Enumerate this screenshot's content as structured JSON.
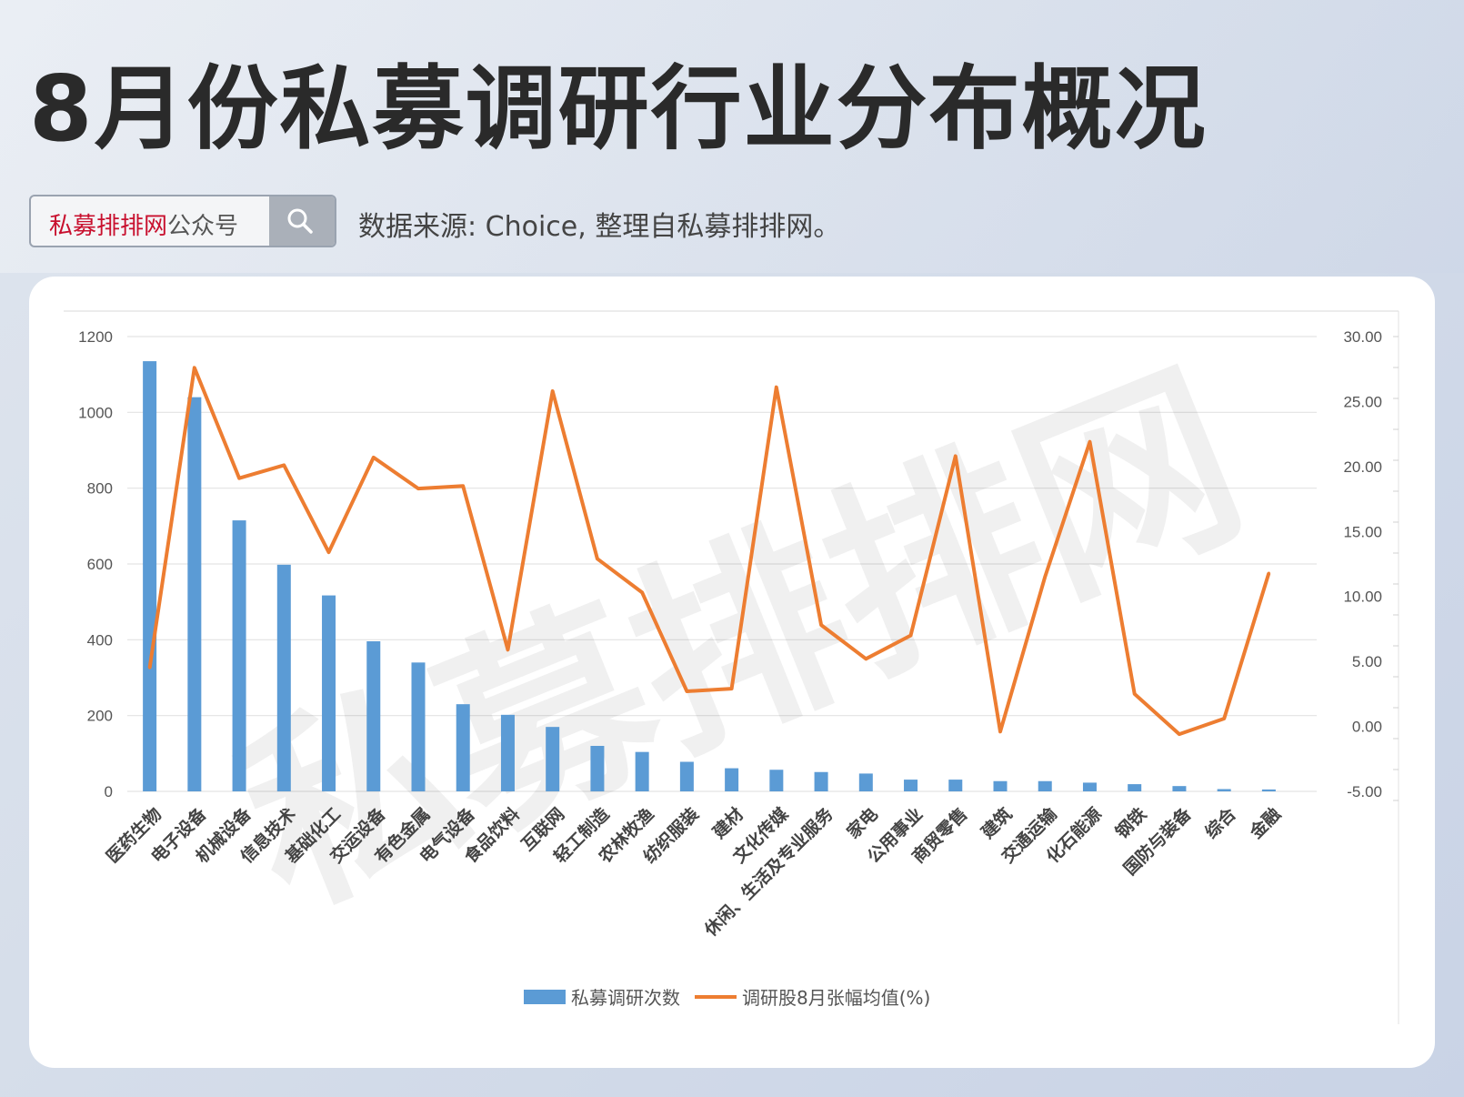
{
  "header": {
    "title": "8月份私募调研行业分布概况",
    "search_brand": "私募排排网",
    "search_suffix": "公众号",
    "source": "数据来源: Choice, 整理自私募排排网。"
  },
  "watermark": "私募排排网",
  "colors": {
    "bar": "#5b9bd5",
    "line": "#ed7d31",
    "brand": "#c8102e"
  },
  "icons": {
    "search": "search-icon"
  },
  "chart_data": {
    "type": "bar",
    "categories": [
      "医药生物",
      "电子设备",
      "机械设备",
      "信息技术",
      "基础化工",
      "交运设备",
      "有色金属",
      "电气设备",
      "食品饮料",
      "互联网",
      "轻工制造",
      "农林牧渔",
      "纺织服装",
      "建材",
      "文化传媒",
      "休闲、生活及专业服务",
      "家电",
      "公用事业",
      "商贸零售",
      "建筑",
      "交通运输",
      "化石能源",
      "钢铁",
      "国防与装备",
      "综合",
      "金融"
    ],
    "series": [
      {
        "name": "私募调研次数",
        "type": "bar",
        "axis": "left",
        "values": [
          1135,
          1040,
          715,
          598,
          517,
          396,
          340,
          230,
          202,
          170,
          120,
          104,
          78,
          61,
          57,
          51,
          47,
          31,
          31,
          27,
          27,
          23,
          19,
          14,
          6,
          5
        ]
      },
      {
        "name": "调研股8月张幅均值(%)",
        "type": "line",
        "axis": "right",
        "values": [
          4.5,
          27.6,
          19.1,
          20.1,
          13.4,
          20.7,
          18.3,
          18.5,
          5.9,
          25.8,
          12.9,
          10.3,
          2.7,
          2.9,
          26.1,
          7.8,
          5.2,
          7.0,
          20.8,
          -0.4,
          11.5,
          21.9,
          2.5,
          -0.6,
          0.6,
          11.8
        ]
      }
    ],
    "y_left": {
      "min": 0,
      "max": 1200,
      "ticks": [
        "0",
        "200",
        "400",
        "600",
        "800",
        "1000",
        "1200"
      ]
    },
    "y_right": {
      "min": -5,
      "max": 30,
      "ticks": [
        "-5.00",
        "0.00",
        "5.00",
        "10.00",
        "15.00",
        "20.00",
        "25.00",
        "30.00"
      ]
    },
    "grid": true,
    "legend": "bottom-center"
  }
}
